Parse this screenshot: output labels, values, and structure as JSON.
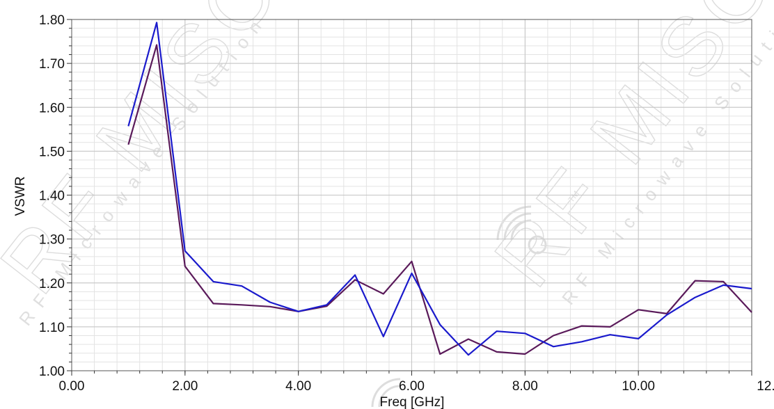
{
  "chart_data": {
    "type": "line",
    "title": "",
    "xlabel": "Freq [GHz]",
    "ylabel": "VSWR",
    "xlim": [
      0,
      12
    ],
    "ylim": [
      1.0,
      1.8
    ],
    "x_major_ticks": [
      0,
      2,
      4,
      6,
      8,
      10,
      12
    ],
    "x_tick_labels": [
      "0.00",
      "2.00",
      "4.00",
      "6.00",
      "8.00",
      "10.00",
      "12.00"
    ],
    "y_major_ticks": [
      1.0,
      1.1,
      1.2,
      1.3,
      1.4,
      1.5,
      1.6,
      1.7,
      1.8
    ],
    "y_tick_labels": [
      "1.00",
      "1.10",
      "1.20",
      "1.30",
      "1.40",
      "1.50",
      "1.60",
      "1.70",
      "1.80"
    ],
    "x_minor_step": 0.4,
    "y_minor_step": 0.02,
    "grid": true,
    "legend": "none",
    "series": [
      {
        "color": "#1a1acc",
        "x": [
          1.0,
          1.5,
          2.0,
          2.5,
          3.0,
          3.5,
          4.0,
          4.5,
          5.0,
          5.5,
          6.0,
          6.5,
          7.0,
          7.5,
          8.0,
          8.5,
          9.0,
          9.5,
          10.0,
          10.5,
          11.0,
          11.5,
          12.0
        ],
        "y": [
          1.557,
          1.793,
          1.273,
          1.203,
          1.193,
          1.156,
          1.135,
          1.15,
          1.218,
          1.078,
          1.222,
          1.105,
          1.036,
          1.09,
          1.085,
          1.055,
          1.066,
          1.082,
          1.073,
          1.127,
          1.167,
          1.195,
          1.187
        ]
      },
      {
        "color": "#5a1a5a",
        "x": [
          1.0,
          1.5,
          2.0,
          2.5,
          3.0,
          3.5,
          4.0,
          4.5,
          5.0,
          5.5,
          6.0,
          6.5,
          7.0,
          7.5,
          8.0,
          8.5,
          9.0,
          9.5,
          10.0,
          10.5,
          11.0,
          11.5,
          12.0
        ],
        "y": [
          1.515,
          1.742,
          1.238,
          1.153,
          1.15,
          1.146,
          1.135,
          1.147,
          1.207,
          1.175,
          1.249,
          1.038,
          1.072,
          1.043,
          1.038,
          1.08,
          1.102,
          1.1,
          1.139,
          1.13,
          1.205,
          1.203,
          1.133
        ]
      }
    ]
  },
  "colors": {
    "background": "#ffffff",
    "plot_border": "#555555",
    "grid_major": "#c4c4c4",
    "grid_minor": "#e3e3e3",
    "watermark": "#d9d9d9"
  },
  "watermark": {
    "brand": "RF MISO",
    "tagline": "RF Microwave Solution",
    "tm": "TM",
    "icon": "rf-miso-logo-icon"
  }
}
